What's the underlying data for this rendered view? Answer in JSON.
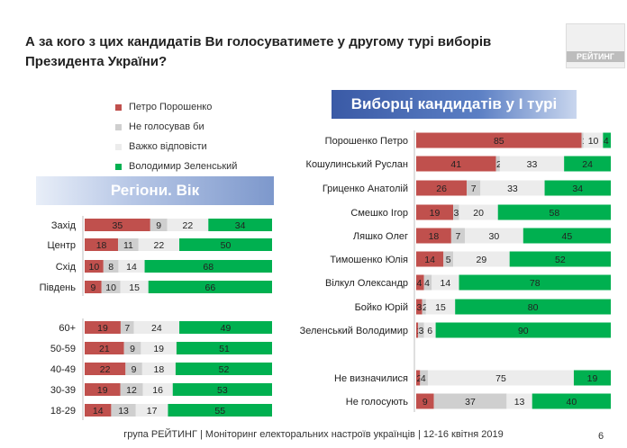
{
  "title": "А за кого з цих кандидатів Ви голосуватимете у другому турі виборів Президента України?",
  "logo_text": "РЕЙТИНГ",
  "left_header": "Регіони. Вік",
  "right_header": "Виборці кандидатів у I турі",
  "footer": "група РЕЙТИНГ | Моніторинг електоральних настроїв українців  |  12-16 квітня 2019",
  "page_number": "6",
  "legend": [
    {
      "label": "Петро Порошенко",
      "color": "#c0504d"
    },
    {
      "label": "Не голосував би",
      "color": "#cfcfcf"
    },
    {
      "label": "Важко відповісти",
      "color": "#ececec"
    },
    {
      "label": "Володимир Зеленський",
      "color": "#00b050"
    }
  ],
  "chart_data": [
    {
      "type": "bar",
      "stacked": true,
      "orientation": "horizontal",
      "title": "Регіони. Вік",
      "categories": [
        "Захід",
        "Центр",
        "Схід",
        "Південь",
        "60+",
        "50-59",
        "40-49",
        "30-39",
        "18-29"
      ],
      "series": [
        {
          "name": "Петро Порошенко",
          "color": "#c0504d",
          "values": [
            35,
            18,
            10,
            9,
            19,
            21,
            22,
            19,
            14
          ]
        },
        {
          "name": "Не голосував би",
          "color": "#cfcfcf",
          "values": [
            9,
            11,
            8,
            10,
            7,
            9,
            9,
            12,
            13
          ]
        },
        {
          "name": "Важко відповісти",
          "color": "#ececec",
          "values": [
            22,
            22,
            14,
            15,
            24,
            19,
            18,
            16,
            17
          ]
        },
        {
          "name": "Володимир Зеленський",
          "color": "#00b050",
          "values": [
            34,
            50,
            68,
            66,
            49,
            51,
            52,
            53,
            55
          ]
        }
      ]
    },
    {
      "type": "bar",
      "stacked": true,
      "orientation": "horizontal",
      "title": "Виборці кандидатів у I турі",
      "categories": [
        "Порошенко Петро",
        "Кошулинський Руслан",
        "Гриценко Анатолій",
        "Смешко Ігор",
        "Ляшко Олег",
        "Тимошенко Юлія",
        "Вілкул Олександр",
        "Бойко Юрій",
        "Зеленський Володимир",
        "Не визначилися",
        "Не голосують"
      ],
      "series": [
        {
          "name": "Петро Порошенко",
          "color": "#c0504d",
          "values": [
            85,
            41,
            26,
            19,
            18,
            14,
            4,
            3,
            1,
            2,
            9
          ]
        },
        {
          "name": "Не голосував би",
          "color": "#cfcfcf",
          "values": [
            1,
            2,
            7,
            3,
            7,
            5,
            4,
            2,
            3,
            4,
            37
          ]
        },
        {
          "name": "Важко відповісти",
          "color": "#ececec",
          "values": [
            10,
            33,
            33,
            20,
            30,
            29,
            14,
            15,
            6,
            75,
            13
          ]
        },
        {
          "name": "Володимир Зеленський",
          "color": "#00b050",
          "values": [
            4,
            24,
            34,
            58,
            45,
            52,
            78,
            80,
            90,
            19,
            40
          ]
        }
      ]
    }
  ]
}
